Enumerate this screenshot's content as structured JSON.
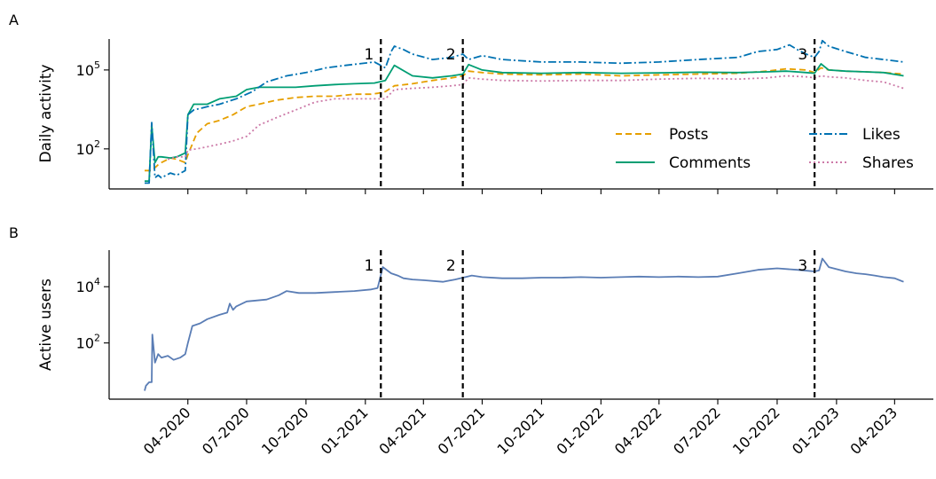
{
  "chart_data": [
    {
      "panel": "A",
      "type": "line",
      "ylabel": "Daily activity",
      "yscale": "log",
      "ylim": [
        3,
        1500000
      ],
      "yticks": [
        {
          "value": 100,
          "base": "10",
          "exp": "2"
        },
        {
          "value": 100000,
          "base": "10",
          "exp": "5"
        }
      ],
      "legend_position": "lower-right",
      "series": [
        {
          "name": "Posts",
          "color": "#E69F00",
          "style": "dashed",
          "x": [
            "2020-01-25",
            "2020-02-05",
            "2020-02-15",
            "2020-02-20",
            "2020-03-05",
            "2020-03-15",
            "2020-03-28",
            "2020-04-01",
            "2020-04-15",
            "2020-05-01",
            "2020-05-20",
            "2020-06-10",
            "2020-07-01",
            "2020-07-20",
            "2020-08-15",
            "2020-09-15",
            "2020-10-15",
            "2020-11-15",
            "2020-12-15",
            "2021-01-10",
            "2021-01-20",
            "2021-02-01",
            "2021-02-15",
            "2021-03-15",
            "2021-04-15",
            "2021-05-15",
            "2021-06-01",
            "2021-06-10",
            "2021-07-01",
            "2021-08-01",
            "2021-10-01",
            "2021-12-01",
            "2022-02-01",
            "2022-04-01",
            "2022-06-01",
            "2022-08-01",
            "2022-09-15",
            "2022-10-15",
            "2022-11-15",
            "2022-11-28",
            "2022-12-08",
            "2022-12-20",
            "2023-01-15",
            "2023-02-15",
            "2023-03-15",
            "2023-04-15"
          ],
          "values": [
            15,
            15,
            25,
            30,
            45,
            40,
            30,
            60,
            400,
            900,
            1200,
            2000,
            4000,
            5000,
            7000,
            9000,
            10000,
            10000,
            12000,
            12000,
            13000,
            15000,
            25000,
            30000,
            40000,
            50000,
            60000,
            90000,
            80000,
            70000,
            65000,
            70000,
            60000,
            65000,
            70000,
            75000,
            90000,
            110000,
            100000,
            80000,
            120000,
            100000,
            90000,
            85000,
            80000,
            70000
          ]
        },
        {
          "name": "Comments",
          "color": "#009E73",
          "style": "solid",
          "x": [
            "2020-01-25",
            "2020-02-01",
            "2020-02-05",
            "2020-02-10",
            "2020-02-15",
            "2020-02-20",
            "2020-03-05",
            "2020-03-15",
            "2020-03-28",
            "2020-04-01",
            "2020-04-10",
            "2020-05-01",
            "2020-05-20",
            "2020-06-15",
            "2020-07-01",
            "2020-07-20",
            "2020-08-15",
            "2020-09-15",
            "2020-10-15",
            "2020-11-15",
            "2020-12-15",
            "2021-01-15",
            "2021-02-01",
            "2021-02-15",
            "2021-03-15",
            "2021-04-15",
            "2021-05-15",
            "2021-06-01",
            "2021-06-10",
            "2021-07-01",
            "2021-08-01",
            "2021-10-01",
            "2021-12-01",
            "2022-02-01",
            "2022-04-01",
            "2022-06-01",
            "2022-08-01",
            "2022-09-15",
            "2022-10-15",
            "2022-11-15",
            "2022-11-28",
            "2022-12-08",
            "2022-12-20",
            "2023-01-15",
            "2023-02-15",
            "2023-03-15",
            "2023-04-15"
          ],
          "values": [
            6,
            6,
            800,
            30,
            50,
            50,
            45,
            50,
            70,
            2000,
            5000,
            5000,
            8000,
            10000,
            18000,
            22000,
            22000,
            22000,
            25000,
            28000,
            30000,
            32000,
            40000,
            150000,
            60000,
            50000,
            60000,
            70000,
            160000,
            100000,
            80000,
            75000,
            80000,
            75000,
            78000,
            82000,
            80000,
            85000,
            90000,
            80000,
            75000,
            170000,
            100000,
            90000,
            85000,
            80000,
            60000
          ]
        },
        {
          "name": "Likes",
          "color": "#0072B2",
          "style": "dashdot",
          "x": [
            "2020-01-25",
            "2020-02-01",
            "2020-02-05",
            "2020-02-10",
            "2020-02-15",
            "2020-02-20",
            "2020-03-05",
            "2020-03-15",
            "2020-03-28",
            "2020-04-01",
            "2020-04-10",
            "2020-05-01",
            "2020-05-20",
            "2020-06-15",
            "2020-07-01",
            "2020-07-10",
            "2020-08-01",
            "2020-09-01",
            "2020-10-01",
            "2020-11-01",
            "2020-12-01",
            "2021-01-15",
            "2021-02-01",
            "2021-02-10",
            "2021-02-15",
            "2021-03-01",
            "2021-03-15",
            "2021-04-15",
            "2021-05-15",
            "2021-06-01",
            "2021-06-10",
            "2021-07-01",
            "2021-08-01",
            "2021-10-01",
            "2021-12-01",
            "2022-02-01",
            "2022-04-01",
            "2022-06-01",
            "2022-08-01",
            "2022-09-01",
            "2022-10-01",
            "2022-10-20",
            "2022-11-01",
            "2022-11-15",
            "2022-11-28",
            "2022-12-05",
            "2022-12-10",
            "2022-12-20",
            "2023-01-15",
            "2023-02-15",
            "2023-03-15",
            "2023-04-15"
          ],
          "values": [
            5,
            5,
            1000,
            8,
            10,
            8,
            12,
            10,
            15,
            2000,
            3000,
            4000,
            5000,
            8000,
            12000,
            15000,
            35000,
            60000,
            80000,
            120000,
            150000,
            200000,
            120000,
            500000,
            800000,
            600000,
            400000,
            250000,
            300000,
            400000,
            250000,
            350000,
            250000,
            200000,
            200000,
            180000,
            200000,
            250000,
            300000,
            500000,
            600000,
            900000,
            600000,
            400000,
            300000,
            500000,
            1300000,
            800000,
            500000,
            300000,
            250000,
            200000
          ]
        },
        {
          "name": "Shares",
          "color": "#CC79A7",
          "style": "dotted",
          "x": [
            "2020-03-01",
            "2020-03-15",
            "2020-03-28",
            "2020-04-01",
            "2020-04-15",
            "2020-05-01",
            "2020-05-20",
            "2020-06-10",
            "2020-07-01",
            "2020-07-20",
            "2020-08-15",
            "2020-09-15",
            "2020-10-15",
            "2020-11-15",
            "2020-12-15",
            "2021-01-15",
            "2021-02-01",
            "2021-02-15",
            "2021-03-15",
            "2021-04-15",
            "2021-05-15",
            "2021-06-01",
            "2021-06-10",
            "2021-07-01",
            "2021-08-01",
            "2021-10-01",
            "2021-12-01",
            "2022-02-01",
            "2022-04-01",
            "2022-06-01",
            "2022-08-01",
            "2022-09-15",
            "2022-10-15",
            "2022-11-15",
            "2022-11-28",
            "2022-12-08",
            "2022-12-20",
            "2023-01-15",
            "2023-02-15",
            "2023-03-15",
            "2023-04-15"
          ],
          "values": [
            40,
            50,
            50,
            90,
            100,
            120,
            150,
            200,
            300,
            800,
            1500,
            3000,
            6000,
            8000,
            8000,
            8000,
            8000,
            18000,
            20000,
            22000,
            25000,
            28000,
            50000,
            45000,
            40000,
            38000,
            40000,
            40000,
            45000,
            48000,
            45000,
            50000,
            60000,
            55000,
            50000,
            60000,
            55000,
            50000,
            40000,
            35000,
            20000
          ]
        }
      ],
      "legend": [
        "Posts",
        "Comments",
        "Likes",
        "Shares"
      ]
    },
    {
      "panel": "B",
      "type": "line",
      "ylabel": "Active users",
      "yscale": "log",
      "ylim": [
        1,
        200000
      ],
      "yticks": [
        {
          "value": 100,
          "base": "10",
          "exp": "2"
        },
        {
          "value": 10000,
          "base": "10",
          "exp": "4"
        }
      ],
      "series": [
        {
          "name": "",
          "color": "#5A7DB5",
          "style": "solid",
          "x": [
            "2020-01-25",
            "2020-01-27",
            "2020-02-01",
            "2020-02-05",
            "2020-02-06",
            "2020-02-10",
            "2020-02-15",
            "2020-02-20",
            "2020-03-01",
            "2020-03-10",
            "2020-03-20",
            "2020-03-28",
            "2020-04-01",
            "2020-04-08",
            "2020-04-20",
            "2020-05-01",
            "2020-05-20",
            "2020-06-01",
            "2020-06-05",
            "2020-06-10",
            "2020-06-15",
            "2020-07-01",
            "2020-08-01",
            "2020-08-20",
            "2020-09-01",
            "2020-09-20",
            "2020-10-15",
            "2020-11-15",
            "2020-12-15",
            "2021-01-10",
            "2021-01-20",
            "2021-01-28",
            "2021-02-10",
            "2021-02-20",
            "2021-03-01",
            "2021-03-15",
            "2021-04-01",
            "2021-05-01",
            "2021-05-20",
            "2021-06-05",
            "2021-06-15",
            "2021-07-01",
            "2021-08-01",
            "2021-09-01",
            "2021-10-01",
            "2021-11-01",
            "2021-12-01",
            "2022-01-01",
            "2022-02-01",
            "2022-03-01",
            "2022-04-01",
            "2022-05-01",
            "2022-06-01",
            "2022-07-01",
            "2022-08-01",
            "2022-09-01",
            "2022-10-01",
            "2022-11-01",
            "2022-11-28",
            "2022-12-05",
            "2022-12-10",
            "2022-12-20",
            "2023-01-15",
            "2023-02-01",
            "2023-02-15",
            "2023-03-01",
            "2023-03-15",
            "2023-04-01",
            "2023-04-15"
          ],
          "values": [
            2,
            3,
            4,
            4,
            200,
            20,
            40,
            30,
            35,
            25,
            30,
            40,
            100,
            400,
            500,
            700,
            1000,
            1200,
            2500,
            1500,
            2000,
            3000,
            3500,
            5000,
            7000,
            6000,
            6000,
            6500,
            7000,
            8000,
            9000,
            50000,
            30000,
            25000,
            20000,
            18000,
            17000,
            15000,
            18000,
            22000,
            25000,
            22000,
            20000,
            20000,
            21000,
            21000,
            22000,
            21000,
            22000,
            23000,
            22000,
            23000,
            22000,
            23000,
            30000,
            40000,
            45000,
            40000,
            35000,
            38000,
            100000,
            50000,
            35000,
            30000,
            28000,
            25000,
            22000,
            20000,
            15000
          ]
        }
      ]
    }
  ],
  "x_axis": {
    "type": "date",
    "range": [
      "2019-12-01",
      "2023-05-31"
    ],
    "ticks": [
      {
        "date": "2020-04-01",
        "label": "04-2020"
      },
      {
        "date": "2020-07-01",
        "label": "07-2020"
      },
      {
        "date": "2020-10-01",
        "label": "10-2020"
      },
      {
        "date": "2021-01-01",
        "label": "01-2021"
      },
      {
        "date": "2021-04-01",
        "label": "04-2021"
      },
      {
        "date": "2021-07-01",
        "label": "07-2021"
      },
      {
        "date": "2021-10-01",
        "label": "10-2021"
      },
      {
        "date": "2022-01-01",
        "label": "01-2022"
      },
      {
        "date": "2022-04-01",
        "label": "04-2022"
      },
      {
        "date": "2022-07-01",
        "label": "07-2022"
      },
      {
        "date": "2022-10-01",
        "label": "10-2022"
      },
      {
        "date": "2023-01-01",
        "label": "01-2023"
      },
      {
        "date": "2023-04-01",
        "label": "04-2023"
      }
    ]
  },
  "events": [
    {
      "label": "1",
      "date": "2021-01-25"
    },
    {
      "label": "2",
      "date": "2021-06-01"
    },
    {
      "label": "3",
      "date": "2022-11-28"
    }
  ],
  "panel_labels": [
    "A",
    "B"
  ]
}
